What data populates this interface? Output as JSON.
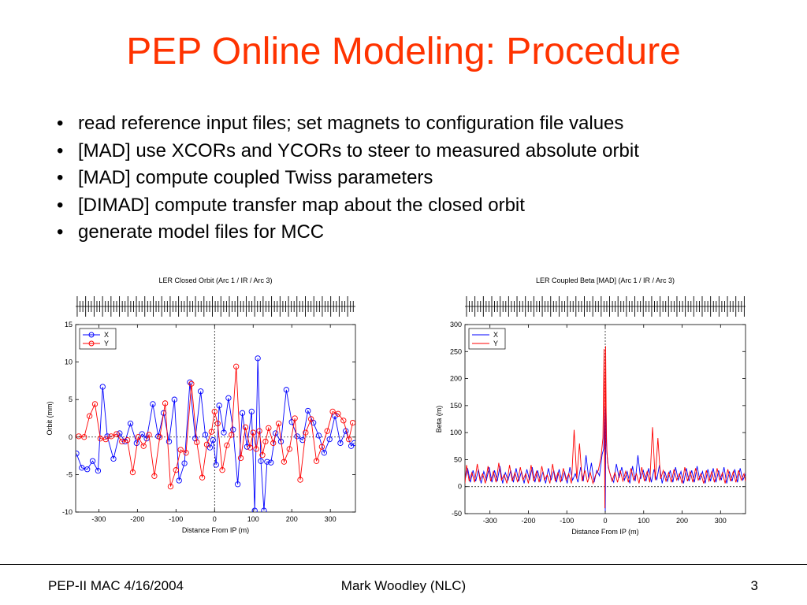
{
  "slide": {
    "title": "PEP Online Modeling: Procedure",
    "bullets": [
      "read reference input files; set magnets to configuration file values",
      "[MAD] use XCORs and YCORs to steer to measured absolute orbit",
      "[MAD] compute coupled Twiss parameters",
      "[DIMAD] compute transfer map about the closed orbit",
      "generate model files for MCC"
    ],
    "bullet_glyph": "•"
  },
  "footer": {
    "left": "PEP-II MAC 4/16/2004",
    "center": "Mark Woodley (NLC)",
    "right": "3"
  },
  "colors": {
    "title": "#ff3300",
    "series_x": "#0000ff",
    "series_y": "#ff0000"
  },
  "chart_data": [
    {
      "type": "line",
      "title": "LER Closed Orbit (Arc 1 / IR / Arc 3)",
      "xlabel": "Distance From IP (m)",
      "ylabel": "Orbit (mm)",
      "xlim": [
        -360,
        365
      ],
      "ylim": [
        -10,
        15
      ],
      "xticks": [
        -300,
        -200,
        -100,
        0,
        100,
        200,
        300
      ],
      "yticks": [
        -10,
        -5,
        0,
        5,
        10,
        15
      ],
      "grid": false,
      "legend": "top-left",
      "markers": "circle",
      "reference_lines": {
        "x": 0,
        "y": 0,
        "style": "dashed"
      },
      "series": [
        {
          "name": "X",
          "color": "#0000ff",
          "x": [
            -358,
            -344,
            -330,
            -316,
            -302,
            -290,
            -278,
            -262,
            -246,
            -232,
            -218,
            -202,
            -188,
            -176,
            -160,
            -146,
            -132,
            -118,
            -104,
            -92,
            -78,
            -64,
            -50,
            -36,
            -24,
            -12,
            -4,
            4,
            12,
            24,
            36,
            48,
            60,
            72,
            84,
            96,
            104,
            112,
            120,
            128,
            136,
            146,
            158,
            172,
            186,
            200,
            214,
            228,
            242,
            256,
            270,
            284,
            298,
            312,
            326,
            340,
            354,
            362
          ],
          "y": [
            -2.2,
            -4.1,
            -4.3,
            -3.2,
            -4.5,
            6.7,
            0.1,
            -2.9,
            0.5,
            -0.6,
            1.8,
            -0.8,
            0.4,
            -0.2,
            4.4,
            0.1,
            3.2,
            -0.6,
            5.0,
            -5.8,
            -3.5,
            7.3,
            -0.2,
            6.1,
            0.3,
            -1.4,
            -0.4,
            -3.7,
            4.2,
            0.6,
            5.2,
            1.0,
            -6.3,
            3.2,
            -1.3,
            3.4,
            -9.8,
            10.5,
            -3.2,
            -9.8,
            -3.3,
            -3.4,
            0.5,
            -0.6,
            6.3,
            2.0,
            0.1,
            -0.4,
            3.5,
            1.9,
            0.2,
            -2.1,
            -0.3,
            2.8,
            -0.8,
            0.8,
            -1.2,
            -0.8
          ]
        },
        {
          "name": "Y",
          "color": "#ff0000",
          "x": [
            -352,
            -338,
            -324,
            -310,
            -296,
            -282,
            -268,
            -254,
            -240,
            -226,
            -212,
            -198,
            -184,
            -170,
            -156,
            -142,
            -128,
            -114,
            -100,
            -88,
            -74,
            -60,
            -46,
            -32,
            -20,
            -8,
            0,
            8,
            20,
            32,
            44,
            56,
            68,
            80,
            92,
            100,
            108,
            116,
            124,
            132,
            140,
            152,
            166,
            180,
            194,
            208,
            222,
            236,
            250,
            264,
            278,
            292,
            306,
            320,
            334,
            348,
            358
          ],
          "y": [
            0.1,
            0.0,
            2.8,
            4.4,
            -0.2,
            -0.3,
            0.1,
            0.4,
            -0.6,
            -0.4,
            -4.7,
            0.0,
            -1.2,
            0.3,
            -5.2,
            0.0,
            4.5,
            -6.6,
            -4.4,
            -1.7,
            -2.1,
            7.1,
            -0.7,
            -5.4,
            -1.0,
            0.7,
            3.4,
            1.8,
            -4.4,
            -1.1,
            0.3,
            9.4,
            -2.8,
            1.3,
            -1.4,
            0.6,
            -1.6,
            0.8,
            -2.4,
            -0.6,
            1.2,
            -0.8,
            1.8,
            -3.3,
            -1.6,
            2.5,
            -5.7,
            0.6,
            2.4,
            -3.2,
            -1.3,
            0.8,
            3.4,
            3.1,
            2.2,
            -0.3,
            1.9
          ]
        }
      ]
    },
    {
      "type": "line",
      "title": "LER Coupled Beta [MAD] (Arc 1 / IR / Arc 3)",
      "xlabel": "Distance From IP (m)",
      "ylabel": "Beta (m)",
      "xlim": [
        -365,
        365
      ],
      "ylim": [
        -50,
        300
      ],
      "xticks": [
        -300,
        -200,
        -100,
        0,
        100,
        200,
        300
      ],
      "yticks": [
        -50,
        0,
        50,
        100,
        150,
        200,
        250,
        300
      ],
      "grid": false,
      "legend": "top-left",
      "markers": "none",
      "reference_lines": {
        "x": 0,
        "y": 0,
        "style": "dashed"
      },
      "series": [
        {
          "name": "X",
          "color": "#0000ff",
          "x": [
            -365,
            -358,
            -351,
            -344,
            -337,
            -330,
            -323,
            -316,
            -309,
            -302,
            -295,
            -288,
            -281,
            -274,
            -267,
            -260,
            -253,
            -246,
            -239,
            -232,
            -225,
            -218,
            -211,
            -204,
            -197,
            -190,
            -183,
            -176,
            -169,
            -162,
            -155,
            -148,
            -141,
            -134,
            -127,
            -120,
            -113,
            -106,
            -99,
            -92,
            -85,
            -78,
            -71,
            -64,
            -57,
            -50,
            -43,
            -36,
            -29,
            -22,
            -15,
            -8,
            -4,
            -2,
            0,
            2,
            4,
            8,
            15,
            22,
            29,
            36,
            43,
            50,
            57,
            64,
            71,
            78,
            85,
            92,
            99,
            106,
            113,
            120,
            127,
            134,
            141,
            148,
            155,
            162,
            169,
            176,
            183,
            190,
            197,
            204,
            211,
            218,
            225,
            232,
            239,
            246,
            253,
            260,
            267,
            274,
            281,
            288,
            295,
            302,
            309,
            316,
            323,
            330,
            337,
            344,
            351,
            358,
            365
          ],
          "y": [
            12,
            34,
            8,
            30,
            10,
            32,
            6,
            28,
            12,
            36,
            8,
            30,
            10,
            38,
            6,
            26,
            12,
            30,
            8,
            34,
            10,
            28,
            6,
            32,
            12,
            36,
            8,
            30,
            10,
            28,
            6,
            34,
            12,
            30,
            8,
            32,
            10,
            28,
            6,
            36,
            12,
            24,
            8,
            36,
            10,
            58,
            14,
            44,
            8,
            30,
            20,
            60,
            70,
            150,
            -45,
            145,
            65,
            35,
            18,
            8,
            42,
            16,
            36,
            12,
            28,
            6,
            38,
            10,
            58,
            14,
            30,
            10,
            34,
            8,
            32,
            12,
            40,
            6,
            28,
            10,
            30,
            8,
            36,
            12,
            28,
            6,
            34,
            10,
            30,
            8,
            38,
            12,
            28,
            6,
            32,
            10,
            34,
            8,
            30,
            12,
            36,
            6,
            28,
            10,
            32,
            8,
            34,
            12,
            24
          ]
        },
        {
          "name": "Y",
          "color": "#ff0000",
          "x": [
            -365,
            -361,
            -354,
            -347,
            -340,
            -333,
            -326,
            -319,
            -312,
            -305,
            -298,
            -291,
            -284,
            -277,
            -270,
            -263,
            -256,
            -249,
            -242,
            -235,
            -228,
            -221,
            -214,
            -207,
            -200,
            -193,
            -186,
            -179,
            -172,
            -165,
            -158,
            -151,
            -144,
            -137,
            -130,
            -123,
            -116,
            -109,
            -102,
            -95,
            -88,
            -81,
            -74,
            -67,
            -60,
            -53,
            -46,
            -39,
            -32,
            -25,
            -18,
            -11,
            -6,
            -3,
            -1,
            1,
            3,
            6,
            11,
            18,
            25,
            32,
            39,
            46,
            53,
            60,
            67,
            74,
            81,
            88,
            95,
            102,
            109,
            116,
            123,
            130,
            137,
            144,
            151,
            158,
            165,
            172,
            179,
            186,
            193,
            200,
            207,
            214,
            221,
            228,
            235,
            242,
            249,
            256,
            263,
            270,
            277,
            284,
            291,
            298,
            305,
            312,
            319,
            326,
            333,
            340,
            347,
            354,
            361,
            365
          ],
          "y": [
            6,
            40,
            10,
            26,
            8,
            42,
            12,
            24,
            6,
            38,
            10,
            28,
            8,
            44,
            12,
            22,
            6,
            40,
            10,
            26,
            8,
            36,
            12,
            24,
            6,
            40,
            10,
            28,
            8,
            38,
            12,
            22,
            6,
            42,
            10,
            26,
            8,
            34,
            12,
            24,
            6,
            105,
            14,
            80,
            10,
            30,
            8,
            26,
            6,
            22,
            30,
            55,
            90,
            255,
            -40,
            260,
            85,
            45,
            28,
            10,
            26,
            8,
            30,
            10,
            28,
            8,
            34,
            12,
            24,
            6,
            36,
            10,
            28,
            8,
            110,
            12,
            90,
            14,
            30,
            10,
            26,
            8,
            32,
            12,
            24,
            6,
            36,
            10,
            28,
            8,
            34,
            12,
            24,
            6,
            30,
            10,
            28,
            8,
            34,
            12,
            26,
            6,
            32,
            10,
            28,
            8,
            30,
            12,
            24,
            10
          ]
        }
      ]
    }
  ]
}
